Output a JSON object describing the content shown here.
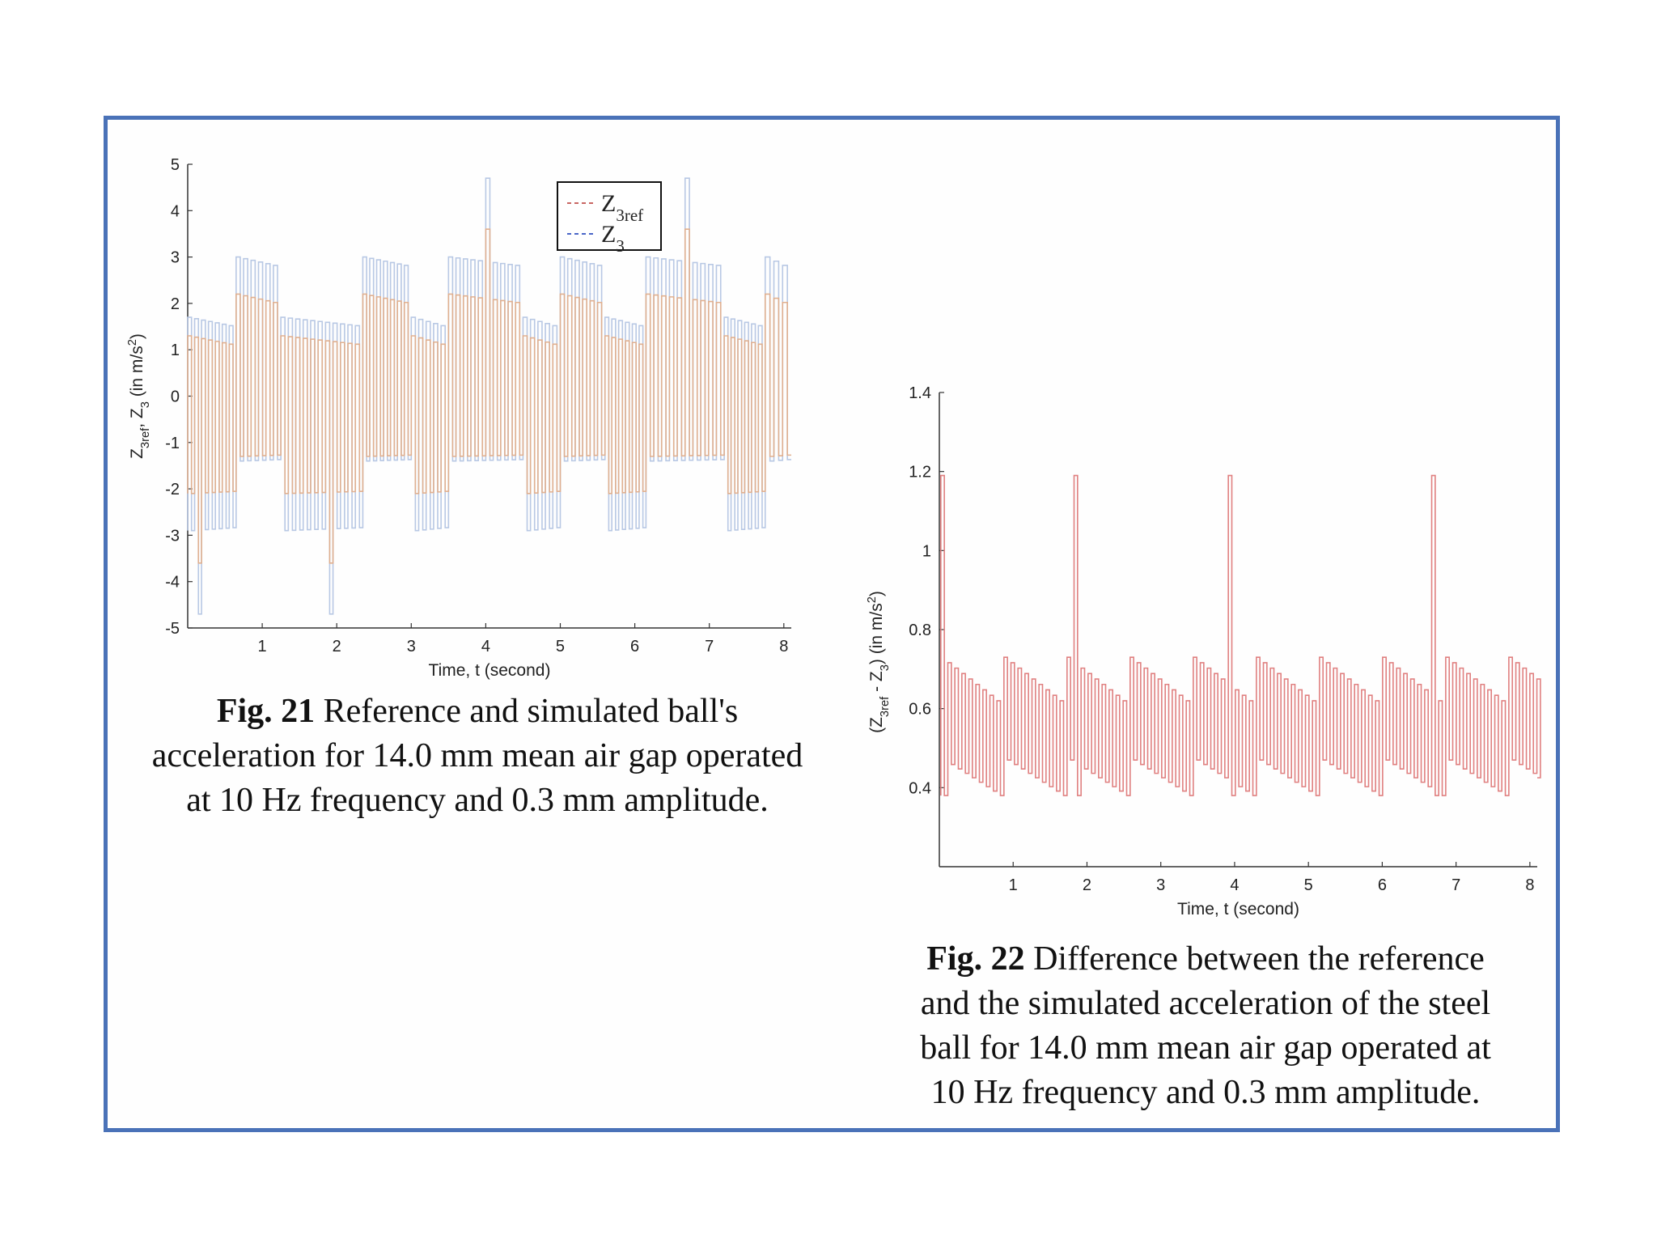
{
  "chart_data": [
    {
      "type": "line",
      "xlabel": "Time, t (second)",
      "ylabel": "Z3ref, Z3 (in m/s2)",
      "xlim": [
        0,
        8.1
      ],
      "ylim": [
        -5,
        5
      ],
      "xticks": [
        1,
        2,
        3,
        4,
        5,
        6,
        7,
        8
      ],
      "yticks": [
        5,
        4,
        3,
        2,
        1,
        0,
        -1,
        -2,
        -3,
        -4,
        -5
      ],
      "legend": {
        "placement": "top-center",
        "entries": [
          {
            "label": "Z3ref",
            "main": "Z",
            "sub": "3ref",
            "color": "#c0504d",
            "dash": "dashed"
          },
          {
            "label": "Z3",
            "main": "Z",
            "sub": "3",
            "color": "#3050c0",
            "dash": "dashed"
          }
        ]
      },
      "series": [
        {
          "name": "Z3ref",
          "color": "#e0b090",
          "segments": [
            {
              "t0": 0.0,
              "t1": 0.65,
              "low": -2.1,
              "high": 1.3,
              "count": 7
            },
            {
              "t0": 0.65,
              "t1": 1.25,
              "low": -1.3,
              "high": 2.2,
              "count": 6
            },
            {
              "t0": 1.25,
              "t1": 2.35,
              "low": -2.1,
              "high": 1.3,
              "count": 11
            },
            {
              "t0": 2.35,
              "t1": 3.0,
              "low": -1.3,
              "high": 2.2,
              "count": 7
            },
            {
              "t0": 3.0,
              "t1": 3.5,
              "low": -2.1,
              "high": 1.3,
              "count": 5
            },
            {
              "t0": 3.5,
              "t1": 4.5,
              "low": -1.3,
              "high": 2.2,
              "count": 10
            },
            {
              "t0": 4.5,
              "t1": 5.0,
              "low": -2.1,
              "high": 1.3,
              "count": 5
            },
            {
              "t0": 5.0,
              "t1": 5.6,
              "low": -1.3,
              "high": 2.2,
              "count": 6
            },
            {
              "t0": 5.6,
              "t1": 6.15,
              "low": -2.1,
              "high": 1.3,
              "count": 6
            },
            {
              "t0": 6.15,
              "t1": 7.2,
              "low": -1.3,
              "high": 2.2,
              "count": 10
            },
            {
              "t0": 7.2,
              "t1": 7.75,
              "low": -2.1,
              "high": 1.3,
              "count": 6
            },
            {
              "t0": 7.75,
              "t1": 8.1,
              "low": -1.3,
              "high": 2.2,
              "count": 3
            }
          ],
          "spikes": [
            {
              "t": 0.12,
              "value": -3.6
            },
            {
              "t": 1.85,
              "value": -3.6
            },
            {
              "t": 4.0,
              "value": 3.6
            },
            {
              "t": 6.7,
              "value": 3.6
            }
          ]
        },
        {
          "name": "Z3",
          "color": "#b8c8e4",
          "segments": [
            {
              "t0": 0.0,
              "t1": 0.65,
              "low": -2.9,
              "high": 1.7,
              "count": 7
            },
            {
              "t0": 0.65,
              "t1": 1.25,
              "low": -1.4,
              "high": 3.0,
              "count": 6
            },
            {
              "t0": 1.25,
              "t1": 2.35,
              "low": -2.9,
              "high": 1.7,
              "count": 11
            },
            {
              "t0": 2.35,
              "t1": 3.0,
              "low": -1.4,
              "high": 3.0,
              "count": 7
            },
            {
              "t0": 3.0,
              "t1": 3.5,
              "low": -2.9,
              "high": 1.7,
              "count": 5
            },
            {
              "t0": 3.5,
              "t1": 4.5,
              "low": -1.4,
              "high": 3.0,
              "count": 10
            },
            {
              "t0": 4.5,
              "t1": 5.0,
              "low": -2.9,
              "high": 1.7,
              "count": 5
            },
            {
              "t0": 5.0,
              "t1": 5.6,
              "low": -1.4,
              "high": 3.0,
              "count": 6
            },
            {
              "t0": 5.6,
              "t1": 6.15,
              "low": -2.9,
              "high": 1.7,
              "count": 6
            },
            {
              "t0": 6.15,
              "t1": 7.2,
              "low": -1.4,
              "high": 3.0,
              "count": 10
            },
            {
              "t0": 7.2,
              "t1": 7.75,
              "low": -2.9,
              "high": 1.7,
              "count": 6
            },
            {
              "t0": 7.75,
              "t1": 8.1,
              "low": -1.4,
              "high": 3.0,
              "count": 3
            }
          ],
          "spikes": [
            {
              "t": 0.12,
              "value": -4.7
            },
            {
              "t": 1.85,
              "value": -4.7
            },
            {
              "t": 4.0,
              "value": 4.7
            },
            {
              "t": 6.7,
              "value": 4.7
            }
          ]
        }
      ]
    },
    {
      "type": "line",
      "xlabel": "Time, t (second)",
      "ylabel": "(Z3ref - Z3) (in m/s2)",
      "xlim": [
        0,
        8.1
      ],
      "ylim": [
        0.2,
        1.4
      ],
      "xticks": [
        1,
        2,
        3,
        4,
        5,
        6,
        7,
        8
      ],
      "yticks": [
        1.4,
        1.2,
        1,
        0.8,
        0.6,
        0.4
      ],
      "series": [
        {
          "name": "",
          "color": "#e08080",
          "pattern": {
            "low": [
              0.38,
              0.47
            ],
            "high": [
              0.62,
              0.73
            ],
            "period_s": 0.095
          },
          "spikes": [
            {
              "t": 0.1,
              "value": 1.19
            },
            {
              "t": 1.85,
              "value": 1.19
            },
            {
              "t": 3.98,
              "value": 1.19
            },
            {
              "t": 6.7,
              "value": 1.19
            }
          ]
        }
      ]
    }
  ],
  "captions": {
    "fig21": {
      "label": "Fig. 21",
      "line1": "Reference and simulated ball's",
      "line2": "acceleration for 14.0 mm mean air gap operated",
      "line3": "at 10 Hz frequency and 0.3 mm amplitude."
    },
    "fig22": {
      "label": "Fig. 22",
      "line1": "Difference between the reference",
      "line2": "and the simulated acceleration of the steel",
      "line3": "ball for 14.0 mm mean air gap operated at",
      "line4": "10 Hz frequency and 0.3 mm amplitude."
    }
  }
}
